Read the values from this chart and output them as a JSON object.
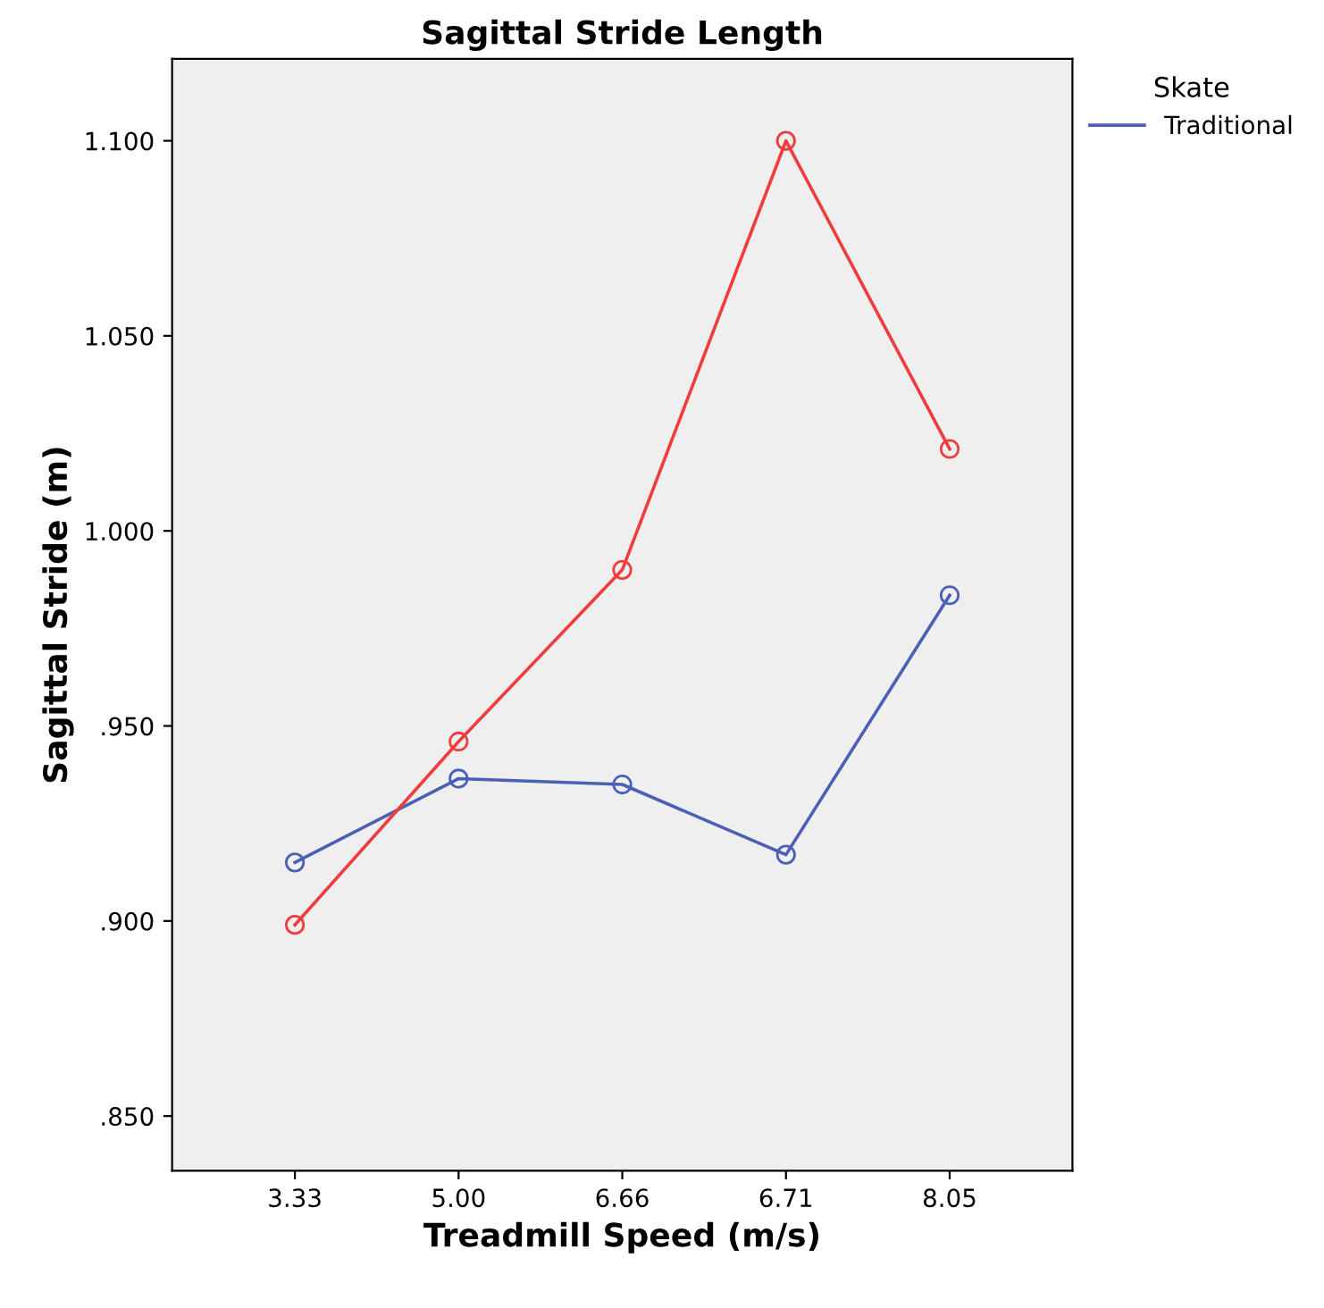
{
  "chart_data": {
    "type": "line",
    "title": "Sagittal Stride Length",
    "xlabel": "Treadmill Speed (m/s)",
    "ylabel": "Sagittal Stride (m)",
    "legend_title": "Skate",
    "categories": [
      "3.33",
      "5.00",
      "6.66",
      "6.71",
      "8.05"
    ],
    "series": [
      {
        "name": "Traditional",
        "color": "#4a5fb5",
        "values": [
          0.915,
          0.9365,
          0.935,
          0.917,
          0.9835
        ]
      },
      {
        "color": "#f03c3c",
        "values": [
          0.899,
          0.946,
          0.99,
          1.1,
          1.021
        ]
      }
    ],
    "ylim": [
      0.836,
      1.121
    ],
    "yticks": [
      {
        "value": 0.85,
        "label": ".850"
      },
      {
        "value": 0.9,
        "label": ".900"
      },
      {
        "value": 0.95,
        "label": ".950"
      },
      {
        "value": 1.0,
        "label": "1.000"
      },
      {
        "value": 1.05,
        "label": "1.050"
      },
      {
        "value": 1.1,
        "label": "1.100"
      }
    ],
    "marker": "circle",
    "line_style": "solid",
    "grid": false,
    "legend": "top right"
  }
}
